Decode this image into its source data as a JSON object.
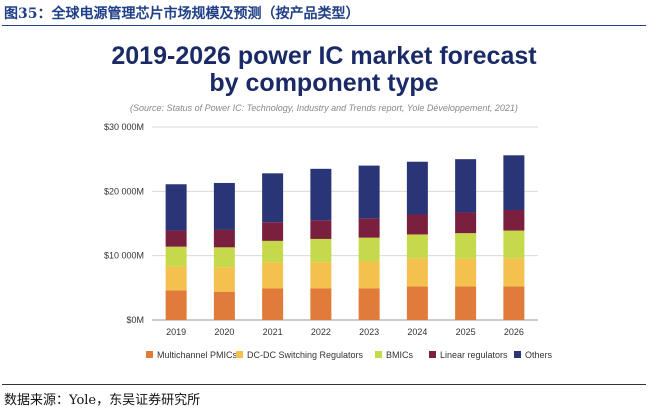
{
  "figure": {
    "caption": "图35：全球电源管理芯片市场规模及预测（按产品类型）",
    "source": "数据来源：Yole，东吴证券研究所"
  },
  "chart_data": {
    "type": "bar",
    "stacked": true,
    "title_line1": "2019-2026 power IC market forecast",
    "title_line2": "by component type",
    "subtitle": "(Source: Status of Power IC: Technology, Industry and Trends report, Yole Développement, 2021)",
    "categories": [
      "2019",
      "2020",
      "2021",
      "2022",
      "2023",
      "2024",
      "2025",
      "2026"
    ],
    "y_tick_labels": [
      "$0M",
      "$10 000M",
      "$20 000M",
      "$30 000M"
    ],
    "y_tick_values": [
      0,
      10000,
      20000,
      30000
    ],
    "ylim": [
      0,
      30000
    ],
    "grid": true,
    "legend_position": "bottom",
    "series": [
      {
        "name": "Multichannel PMICs",
        "color": "#e07b39",
        "values": [
          4600,
          4400,
          4900,
          4900,
          4900,
          5200,
          5200,
          5200
        ]
      },
      {
        "name": "DC-DC Switching Regulators",
        "color": "#f4c04e",
        "values": [
          3700,
          3800,
          4100,
          4100,
          4200,
          4400,
          4300,
          4400
        ]
      },
      {
        "name": "BMICs",
        "color": "#c6d94a",
        "values": [
          3100,
          3100,
          3300,
          3600,
          3700,
          3700,
          4000,
          4300
        ]
      },
      {
        "name": "Linear regulators",
        "color": "#7a1f3d",
        "values": [
          2500,
          2700,
          2900,
          2900,
          3000,
          3100,
          3200,
          3200
        ]
      },
      {
        "name": "Others",
        "color": "#2a3577",
        "values": [
          7200,
          7300,
          7600,
          8000,
          8200,
          8200,
          8300,
          8500
        ]
      }
    ]
  }
}
